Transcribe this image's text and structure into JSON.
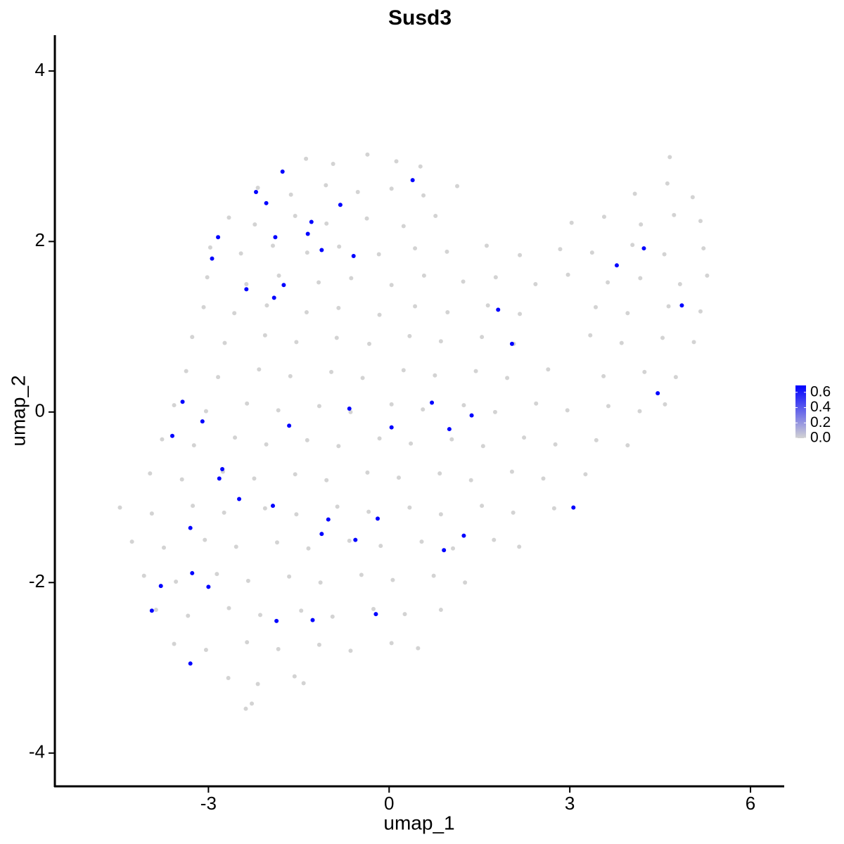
{
  "chart_data": {
    "type": "scatter",
    "title": "Susd3",
    "x_label": "umap_1",
    "y_label": "umap_2",
    "xlim": [
      -5.55,
      6.56
    ],
    "ylim": [
      -4.39,
      4.42
    ],
    "xticks": [
      -3,
      0,
      3,
      6
    ],
    "yticks": [
      -4,
      -2,
      0,
      2,
      4
    ],
    "grid": false,
    "low_color": "#d3d3d3",
    "high_color": "#0000ff",
    "colorlim": [
      0,
      0.69
    ],
    "colorticks": [
      {
        "value": 0,
        "label": "0.0"
      },
      {
        "value": 0.2,
        "label": "0.2"
      },
      {
        "value": 0.4,
        "label": "0.4"
      },
      {
        "value": 0.6,
        "label": "0.6"
      }
    ],
    "x": [
      -1.38,
      -0.93,
      -0.36,
      0.12,
      0.52,
      4.66,
      -2.18,
      -1.63,
      -1.05,
      -0.52,
      0.04,
      0.57,
      1.13,
      4.08,
      4.62,
      5.04,
      -2.66,
      -2.23,
      -1.56,
      -1.04,
      -0.37,
      0.24,
      0.77,
      3.03,
      3.57,
      4.18,
      4.73,
      5.17,
      -2.97,
      -2.46,
      -1.93,
      -1.36,
      -0.83,
      -0.17,
      0.43,
      0.96,
      1.62,
      2.17,
      2.84,
      3.37,
      4.04,
      4.57,
      5.22,
      -3.02,
      -2.37,
      -1.83,
      -1.17,
      -0.63,
      0.04,
      0.58,
      1.23,
      1.77,
      2.43,
      2.97,
      3.63,
      4.17,
      4.83,
      5.28,
      -3.08,
      -2.57,
      -2.03,
      -1.37,
      -0.84,
      -0.16,
      0.43,
      0.97,
      1.64,
      2.17,
      3.43,
      3.96,
      4.64,
      5.17,
      -3.27,
      -2.73,
      -2.06,
      -1.54,
      -0.87,
      -0.33,
      0.34,
      0.86,
      1.54,
      2.07,
      3.34,
      3.86,
      4.54,
      5.06,
      -3.37,
      -2.84,
      -2.16,
      -1.64,
      -0.96,
      -0.44,
      0.24,
      0.76,
      1.44,
      1.96,
      2.64,
      3.56,
      4.24,
      4.76,
      -3.57,
      -3.04,
      -2.36,
      -1.84,
      -1.16,
      -0.64,
      0.04,
      0.56,
      1.24,
      1.76,
      2.44,
      2.96,
      3.64,
      4.16,
      4.58,
      -3.77,
      -3.24,
      -2.56,
      -2.04,
      -1.36,
      -0.84,
      -0.16,
      0.36,
      1.04,
      1.56,
      2.24,
      2.76,
      3.44,
      3.96,
      -3.97,
      -3.44,
      -2.76,
      -2.24,
      -1.56,
      -1.04,
      -0.36,
      0.16,
      0.84,
      1.36,
      2.04,
      2.56,
      3.26,
      -4.47,
      -3.94,
      -3.26,
      -2.74,
      -2.06,
      -1.54,
      -0.86,
      -0.34,
      0.34,
      0.86,
      1.54,
      2.06,
      2.74,
      -4.27,
      -3.74,
      -3.06,
      -2.54,
      -1.86,
      -1.34,
      -0.66,
      -0.14,
      0.54,
      1.06,
      1.74,
      2.16,
      -4.07,
      -3.54,
      -2.86,
      -2.34,
      -1.66,
      -1.14,
      -0.46,
      0.06,
      0.74,
      1.26,
      -3.87,
      -3.34,
      -2.66,
      -2.14,
      -1.46,
      -0.94,
      -0.26,
      0.26,
      0.86,
      -3.57,
      -3.04,
      -2.36,
      -1.84,
      -1.16,
      -0.64,
      0.04,
      0.48,
      -2.67,
      -2.18,
      -1.57,
      -1.42,
      -2.28,
      -2.38,
      0.39,
      -1.77,
      -2.21,
      -2.04,
      -0.81,
      -1.29,
      -1.35,
      -2.84,
      -1.89,
      -1.12,
      -0.59,
      -2.94,
      -1.75,
      -2.37,
      -1.91,
      1.81,
      2.04,
      3.78,
      4.23,
      4.86,
      4.46,
      -3.43,
      -3.1,
      -3.6,
      -1.66,
      -0.66,
      0.04,
      0.71,
      1.0,
      1.37,
      -2.77,
      -2.82,
      -2.49,
      -1.93,
      -1.01,
      -0.19,
      -1.12,
      -0.56,
      1.24,
      0.91,
      3.06,
      -3.3,
      -3.27,
      -3.79,
      -3.0,
      -3.94,
      -1.87,
      -1.27,
      -0.22,
      -3.3
    ],
    "y": [
      2.97,
      2.91,
      3.02,
      2.94,
      2.88,
      2.99,
      2.63,
      2.55,
      2.66,
      2.58,
      2.62,
      2.54,
      2.65,
      2.56,
      2.68,
      2.52,
      2.28,
      2.2,
      2.3,
      2.21,
      2.27,
      2.18,
      2.3,
      2.22,
      2.29,
      2.2,
      2.31,
      2.24,
      1.93,
      1.86,
      1.95,
      1.87,
      1.94,
      1.85,
      1.92,
      1.88,
      1.95,
      1.84,
      1.91,
      1.87,
      1.96,
      1.85,
      1.92,
      1.58,
      1.5,
      1.6,
      1.52,
      1.57,
      1.49,
      1.6,
      1.53,
      1.58,
      1.5,
      1.61,
      1.52,
      1.57,
      1.5,
      1.6,
      1.23,
      1.16,
      1.25,
      1.17,
      1.22,
      1.14,
      1.24,
      1.17,
      1.25,
      1.15,
      1.23,
      1.16,
      1.24,
      1.18,
      0.88,
      0.81,
      0.9,
      0.82,
      0.87,
      0.8,
      0.89,
      0.83,
      0.88,
      0.8,
      0.9,
      0.81,
      0.87,
      0.82,
      0.48,
      0.41,
      0.5,
      0.42,
      0.47,
      0.4,
      0.49,
      0.43,
      0.48,
      0.4,
      0.5,
      0.42,
      0.47,
      0.41,
      0.08,
      0.01,
      0.1,
      0.02,
      0.07,
      0.0,
      0.09,
      0.03,
      0.08,
      0.0,
      0.1,
      0.02,
      0.07,
      0.01,
      0.09,
      -0.32,
      -0.39,
      -0.3,
      -0.38,
      -0.33,
      -0.4,
      -0.31,
      -0.37,
      -0.32,
      -0.4,
      -0.3,
      -0.38,
      -0.33,
      -0.39,
      -0.72,
      -0.79,
      -0.7,
      -0.78,
      -0.73,
      -0.8,
      -0.71,
      -0.77,
      -0.72,
      -0.8,
      -0.7,
      -0.78,
      -0.73,
      -1.12,
      -1.19,
      -1.1,
      -1.18,
      -1.13,
      -1.2,
      -1.11,
      -1.17,
      -1.12,
      -1.2,
      -1.1,
      -1.18,
      -1.13,
      -1.52,
      -1.59,
      -1.5,
      -1.58,
      -1.53,
      -1.6,
      -1.51,
      -1.57,
      -1.52,
      -1.6,
      -1.5,
      -1.58,
      -1.92,
      -1.99,
      -1.9,
      -1.98,
      -1.93,
      -2.0,
      -1.91,
      -1.97,
      -1.92,
      -2.0,
      -2.32,
      -2.39,
      -2.3,
      -2.38,
      -2.33,
      -2.4,
      -2.31,
      -2.37,
      -2.32,
      -2.72,
      -2.79,
      -2.7,
      -2.78,
      -2.73,
      -2.8,
      -2.71,
      -2.77,
      -3.12,
      -3.19,
      -3.1,
      -3.18,
      -3.42,
      -3.48,
      2.72,
      2.82,
      2.58,
      2.45,
      2.43,
      2.23,
      2.09,
      2.05,
      2.05,
      1.9,
      1.83,
      1.8,
      1.49,
      1.44,
      1.34,
      1.2,
      0.8,
      1.72,
      1.92,
      1.25,
      0.22,
      0.12,
      -0.11,
      -0.28,
      -0.16,
      0.04,
      -0.18,
      0.11,
      -0.2,
      -0.04,
      -0.67,
      -0.78,
      -1.02,
      -1.1,
      -1.26,
      -1.25,
      -1.43,
      -1.5,
      -1.45,
      -1.62,
      -1.12,
      -1.36,
      -1.89,
      -2.04,
      -2.05,
      -2.33,
      -2.45,
      -2.44,
      -2.37,
      -2.95
    ],
    "values": [
      0,
      0,
      0,
      0,
      0,
      0,
      0,
      0,
      0,
      0,
      0,
      0,
      0,
      0,
      0,
      0,
      0,
      0,
      0,
      0,
      0,
      0,
      0,
      0,
      0,
      0,
      0,
      0,
      0,
      0,
      0,
      0,
      0,
      0,
      0,
      0,
      0,
      0,
      0,
      0,
      0,
      0,
      0,
      0,
      0,
      0,
      0,
      0,
      0,
      0,
      0,
      0,
      0,
      0,
      0,
      0,
      0,
      0,
      0,
      0,
      0,
      0,
      0,
      0,
      0,
      0,
      0,
      0,
      0,
      0,
      0,
      0,
      0,
      0,
      0,
      0,
      0,
      0,
      0,
      0,
      0,
      0,
      0,
      0,
      0,
      0,
      0,
      0,
      0,
      0,
      0,
      0,
      0,
      0,
      0,
      0,
      0,
      0,
      0,
      0,
      0,
      0,
      0,
      0,
      0,
      0,
      0,
      0,
      0,
      0,
      0,
      0,
      0,
      0,
      0,
      0,
      0,
      0,
      0,
      0,
      0,
      0,
      0,
      0,
      0,
      0,
      0,
      0,
      0,
      0,
      0,
      0,
      0,
      0,
      0,
      0,
      0,
      0,
      0,
      0,
      0,
      0,
      0,
      0,
      0,
      0,
      0,
      0,
      0,
      0,
      0,
      0,
      0,
      0,
      0,
      0,
      0,
      0,
      0,
      0,
      0,
      0,
      0,
      0,
      0,
      0,
      0,
      0,
      0,
      0,
      0,
      0,
      0,
      0,
      0,
      0,
      0,
      0,
      0,
      0,
      0,
      0,
      0,
      0,
      0,
      0,
      0,
      0,
      0,
      0,
      0,
      0,
      0,
      0,
      0,
      0,
      0,
      0,
      0,
      0,
      0.69,
      0.69,
      0.69,
      0.69,
      0.69,
      0.69,
      0.69,
      0.69,
      0.69,
      0.69,
      0.69,
      0.69,
      0.69,
      0.69,
      0.69,
      0.69,
      0.69,
      0.69,
      0.69,
      0.69,
      0.69,
      0.69,
      0.69,
      0.69,
      0.69,
      0.69,
      0.69,
      0.69,
      0.69,
      0.69,
      0.69,
      0.69,
      0.69,
      0.69,
      0.69,
      0.69,
      0.69,
      0.69,
      0.69,
      0.69,
      0.69,
      0.69,
      0.69,
      0.69,
      0.69,
      0.69,
      0.69,
      0.69,
      0.69,
      0.69
    ]
  }
}
